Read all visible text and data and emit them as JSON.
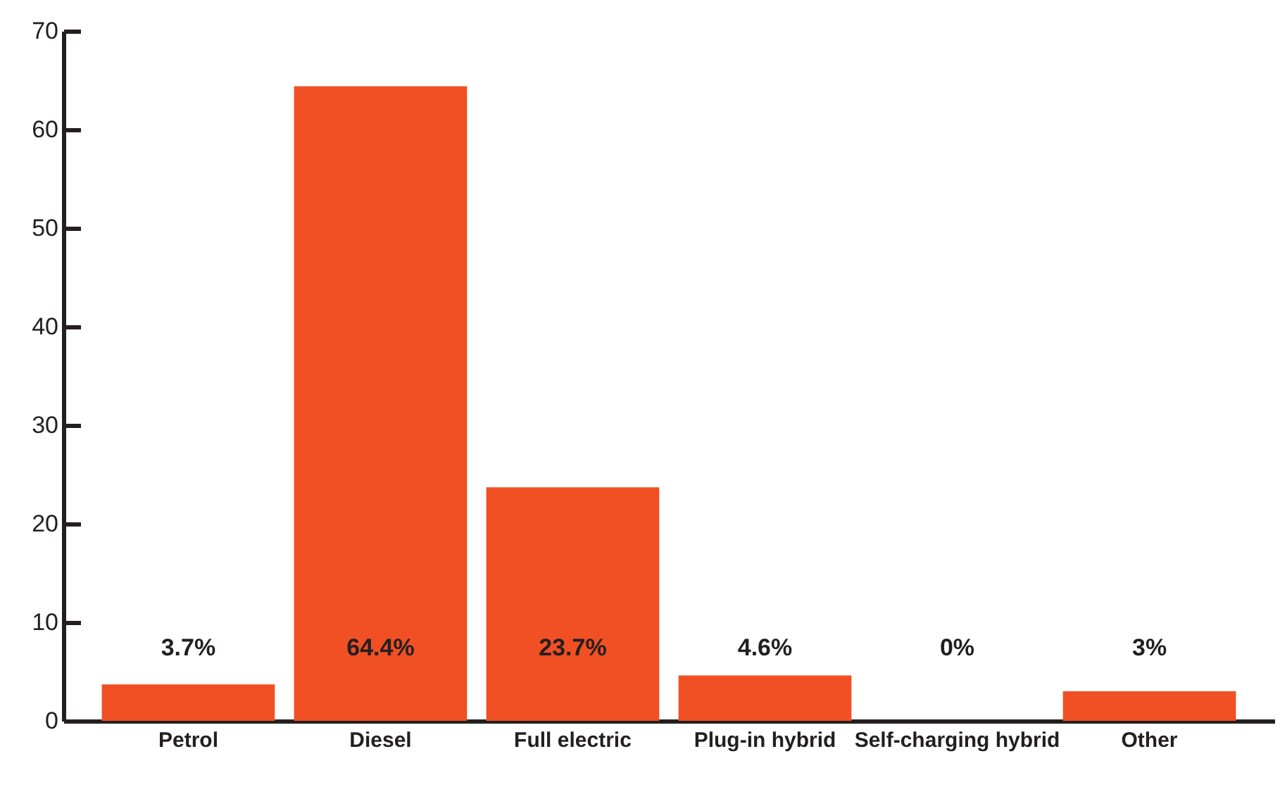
{
  "chart_data": {
    "type": "bar",
    "categories": [
      "Petrol",
      "Diesel",
      "Full electric",
      "Plug-in hybrid",
      "Self-charging hybrid",
      "Other"
    ],
    "values": [
      3.7,
      64.4,
      23.7,
      4.6,
      0,
      3
    ],
    "value_labels": [
      "3.7%",
      "64.4%",
      "23.7%",
      "4.6%",
      "0%",
      "3%"
    ],
    "color": "#f05023",
    "ylim": [
      0,
      70
    ],
    "yticks": [
      0,
      10,
      20,
      30,
      40,
      50,
      60,
      70
    ],
    "grid": false
  }
}
